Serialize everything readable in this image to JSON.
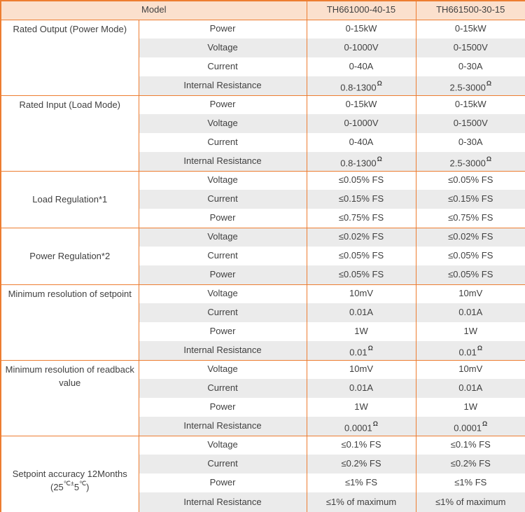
{
  "theme": {
    "border_orange": "#ED7D31",
    "header_fill": "#FBE0CD",
    "stripe_gray": "#EBEBEB",
    "text_color": "#404040"
  },
  "header": {
    "model_label": "Model",
    "models": [
      "TH661000-40-15",
      "TH661500-30-15"
    ]
  },
  "groups": [
    {
      "label": "Rated Output (Power Mode)",
      "rows": [
        {
          "param": "Power",
          "v1": "0-15kW",
          "v2": "0-15kW"
        },
        {
          "param": "Voltage",
          "v1": "0-1000V",
          "v2": "0-1500V"
        },
        {
          "param": "Current",
          "v1": "0-40A",
          "v2": "0-30A"
        },
        {
          "param": "Internal Resistance",
          "v1": "0.8-1300",
          "v1_sup": "Ω",
          "v2": "2.5-3000",
          "v2_sup": "Ω"
        }
      ]
    },
    {
      "label": "Rated Input (Load Mode)",
      "rows": [
        {
          "param": "Power",
          "v1": "0-15kW",
          "v2": "0-15kW"
        },
        {
          "param": "Voltage",
          "v1": "0-1000V",
          "v2": "0-1500V"
        },
        {
          "param": "Current",
          "v1": "0-40A",
          "v2": "0-30A"
        },
        {
          "param": "Internal Resistance",
          "v1": "0.8-1300",
          "v1_sup": "Ω",
          "v2": "2.5-3000",
          "v2_sup": "Ω"
        }
      ]
    },
    {
      "label": "Load Regulation*1",
      "rows": [
        {
          "param": "Voltage",
          "v1": "≤0.05% FS",
          "v2": "≤0.05% FS"
        },
        {
          "param": "Current",
          "v1": "≤0.15% FS",
          "v2": "≤0.15% FS"
        },
        {
          "param": "Power",
          "v1": "≤0.75% FS",
          "v2": "≤0.75% FS"
        }
      ]
    },
    {
      "label": "Power Regulation*2",
      "rows": [
        {
          "param": "Voltage",
          "v1": "≤0.02% FS",
          "v2": "≤0.02% FS"
        },
        {
          "param": "Current",
          "v1": "≤0.05% FS",
          "v2": "≤0.05% FS"
        },
        {
          "param": "Power",
          "v1": "≤0.05% FS",
          "v2": "≤0.05% FS"
        }
      ]
    },
    {
      "label": "Minimum resolution of setpoint",
      "rows": [
        {
          "param": "Voltage",
          "v1": "10mV",
          "v2": "10mV"
        },
        {
          "param": "Current",
          "v1": "0.01A",
          "v2": "0.01A"
        },
        {
          "param": "Power",
          "v1": "1W",
          "v2": "1W"
        },
        {
          "param": "Internal Resistance",
          "v1": "0.01",
          "v1_sup": "Ω",
          "v2": "0.01",
          "v2_sup": "Ω"
        }
      ]
    },
    {
      "label": "Minimum resolution of readback value",
      "rows": [
        {
          "param": "Voltage",
          "v1": "10mV",
          "v2": "10mV"
        },
        {
          "param": "Current",
          "v1": "0.01A",
          "v2": "0.01A"
        },
        {
          "param": "Power",
          "v1": "1W",
          "v2": "1W"
        },
        {
          "param": "Internal Resistance",
          "v1": "0.0001",
          "v1_sup": "Ω",
          "v2": "0.0001",
          "v2_sup": "Ω"
        }
      ]
    },
    {
      "label": "Setpoint accuracy 12Months",
      "label2": {
        "p1": "(25",
        "s1": "℃±",
        "p2": "5",
        "s2": "℃",
        "p3": ")"
      },
      "rows": [
        {
          "param": "Voltage",
          "v1": "≤0.1% FS",
          "v2": "≤0.1% FS"
        },
        {
          "param": "Current",
          "v1": "≤0.2% FS",
          "v2": "≤0.2% FS"
        },
        {
          "param": "Power",
          "v1": "≤1% FS",
          "v2": "≤1% FS"
        },
        {
          "param": "Internal Resistance",
          "v1": "≤1% of maximum",
          "v2": "≤1% of maximum"
        }
      ]
    }
  ]
}
